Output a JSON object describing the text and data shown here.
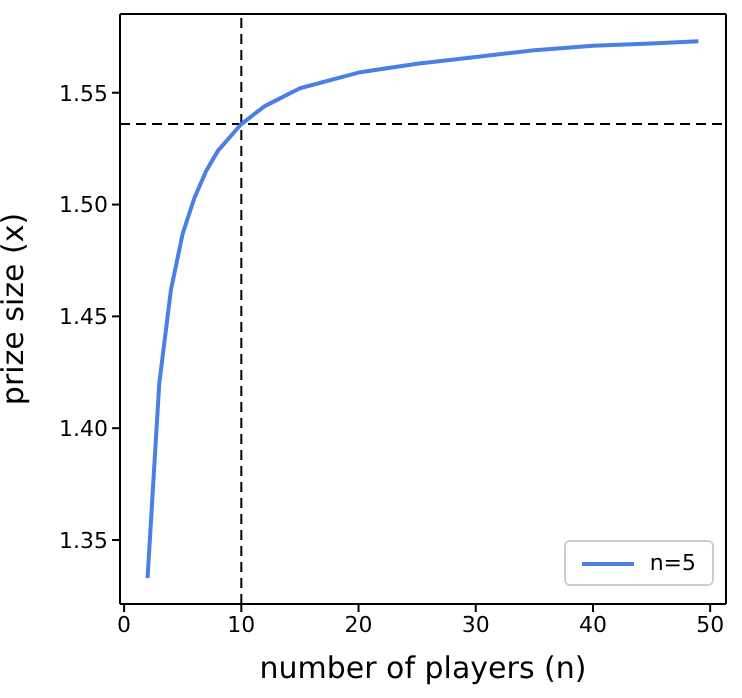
{
  "chart_data": {
    "type": "line",
    "xlabel": "number of players (n)",
    "ylabel": "prize size (x)",
    "x": [
      2,
      3,
      4,
      5,
      6,
      7,
      8,
      10,
      12,
      15,
      20,
      25,
      30,
      35,
      40,
      45,
      49
    ],
    "series": [
      {
        "name": "n=5",
        "color": "#4a7fe6",
        "values": [
          1.333,
          1.42,
          1.462,
          1.487,
          1.503,
          1.515,
          1.524,
          1.536,
          1.544,
          1.552,
          1.559,
          1.563,
          1.566,
          1.569,
          1.571,
          1.572,
          1.573
        ]
      }
    ],
    "xlim": [
      -0.35,
      51.35
    ],
    "xticks": [
      0,
      10,
      20,
      30,
      40,
      50
    ],
    "ylim": [
      1.3214,
      1.5852
    ],
    "yticks": [
      1.35,
      {
        "value": 1.4,
        "label": "1.40"
      },
      1.45,
      {
        "value": 1.5,
        "label": "1.50"
      },
      1.55
    ],
    "ref_lines": [
      {
        "axis": "x",
        "value": 10,
        "color": "#000000",
        "line_style": "dashed"
      },
      {
        "axis": "y",
        "value": 1.536,
        "color": "#000000",
        "line_style": "dashed"
      }
    ],
    "grid": false,
    "legend": "bottom right",
    "marker": "none",
    "line_style": "solid"
  }
}
